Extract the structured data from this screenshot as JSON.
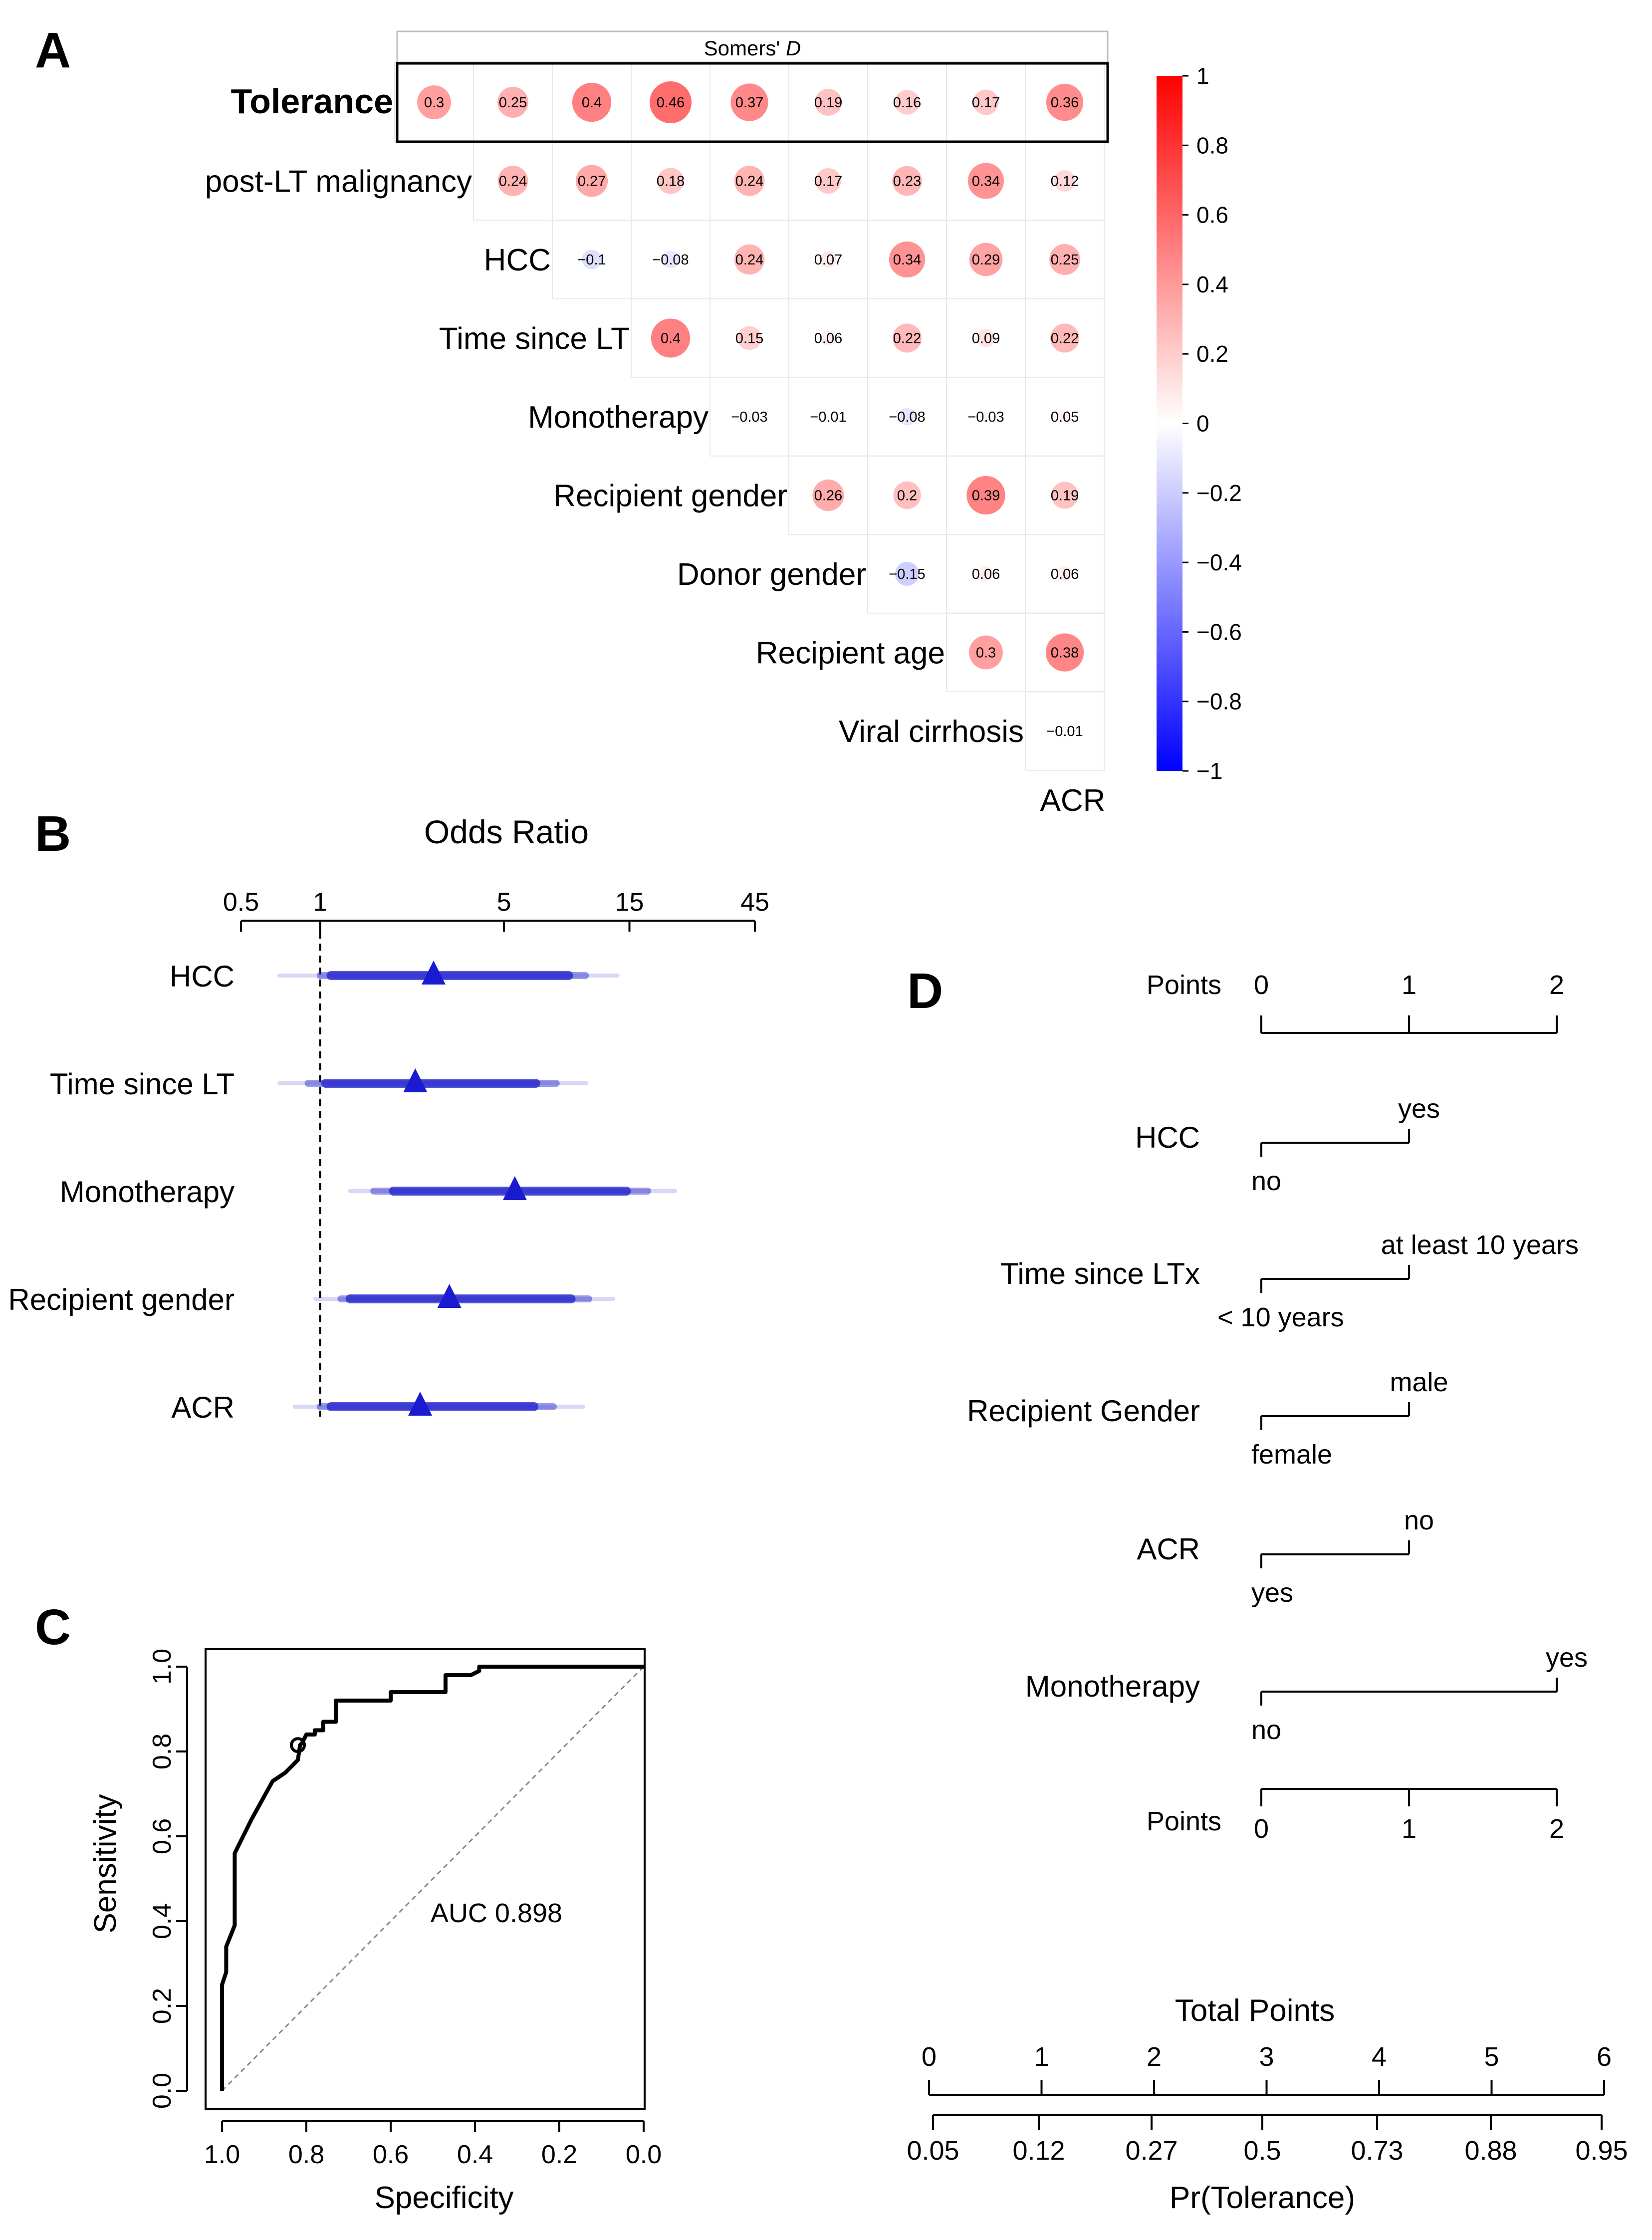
{
  "panels": {
    "a": "A",
    "b": "B",
    "c": "C",
    "d": "D"
  },
  "chart_data": [
    {
      "type": "heatmap",
      "panel": "A",
      "title": "Somers' D",
      "title_plain": "Somers' ",
      "title_italic": "D",
      "rows": [
        "Tolerance",
        "post-LT malignancy",
        "HCC",
        "Time since LT",
        "Monotherapy",
        "Recipient gender",
        "Donor gender",
        "Recipient age",
        "Viral cirrhosis"
      ],
      "bottom_label": "ACR",
      "values": [
        [
          0.3,
          0.25,
          0.4,
          0.46,
          0.37,
          0.19,
          0.16,
          0.17,
          0.36
        ],
        [
          0.24,
          0.27,
          0.18,
          0.24,
          0.17,
          0.23,
          0.34,
          0.12
        ],
        [
          -0.1,
          -0.08,
          0.24,
          0.07,
          0.34,
          0.29,
          0.25
        ],
        [
          0.4,
          0.15,
          0.06,
          0.22,
          0.09,
          0.22
        ],
        [
          -0.03,
          -0.01,
          -0.08,
          -0.03,
          0.05
        ],
        [
          0.26,
          0.2,
          0.39,
          0.19
        ],
        [
          -0.15,
          0.06,
          0.06
        ],
        [
          0.3,
          0.38
        ],
        [
          -0.01
        ]
      ],
      "colorbar": {
        "range": [
          -1,
          1
        ],
        "ticks": [
          "1",
          "0.8",
          "0.6",
          "0.4",
          "0.2",
          "0",
          "−0.2",
          "−0.4",
          "−0.6",
          "−0.8",
          "−1"
        ],
        "colors": {
          "low": "#0000ff",
          "mid": "#ffffff",
          "high": "#ff0000"
        }
      }
    },
    {
      "type": "scatter",
      "panel": "B",
      "subtype": "forest",
      "title": "Odds Ratio",
      "scale": "log",
      "xlim": [
        0.5,
        45
      ],
      "xticks": [
        "0.5",
        "1",
        "5",
        "15",
        "45"
      ],
      "xtick_values": [
        0.5,
        1,
        5,
        15,
        45
      ],
      "reference_line": 1,
      "color": "#2222cc",
      "rows": [
        {
          "label": "HCC",
          "or": 2.7,
          "ci_inner": [
            1.1,
            8.8
          ],
          "ci_mid": [
            1.0,
            10.2
          ],
          "ci_outer": [
            0.7,
            13.5
          ]
        },
        {
          "label": "Time since LT",
          "or": 2.3,
          "ci_inner": [
            1.05,
            6.6
          ],
          "ci_mid": [
            0.9,
            7.9
          ],
          "ci_outer": [
            0.7,
            10.3
          ]
        },
        {
          "label": "Monotherapy",
          "or": 5.5,
          "ci_inner": [
            1.9,
            14.6
          ],
          "ci_mid": [
            1.6,
            17.6
          ],
          "ci_outer": [
            1.3,
            22.4
          ]
        },
        {
          "label": "Recipient gender",
          "or": 3.1,
          "ci_inner": [
            1.3,
            9.0
          ],
          "ci_mid": [
            1.2,
            10.5
          ],
          "ci_outer": [
            0.96,
            13.0
          ]
        },
        {
          "label": "ACR",
          "or": 2.4,
          "ci_inner": [
            1.1,
            6.5
          ],
          "ci_mid": [
            1.0,
            7.7
          ],
          "ci_outer": [
            0.8,
            10.0
          ]
        }
      ]
    },
    {
      "type": "line",
      "panel": "C",
      "subtype": "roc",
      "xlabel": "Specificity",
      "ylabel": "Sensitivity",
      "xlim": [
        1.0,
        0.0
      ],
      "ylim": [
        0.0,
        1.0
      ],
      "xticks": [
        "1.0",
        "0.8",
        "0.6",
        "0.4",
        "0.2",
        "0.0"
      ],
      "yticks": [
        "0.0",
        "0.2",
        "0.4",
        "0.6",
        "0.8",
        "1.0"
      ],
      "annotation": "AUC 0.898",
      "threshold_point": {
        "specificity": 0.82,
        "sensitivity": 0.815
      },
      "x": [
        1.0,
        1.0,
        0.99,
        0.99,
        0.97,
        0.97,
        0.96,
        0.95,
        0.93,
        0.88,
        0.85,
        0.84,
        0.82,
        0.815,
        0.81,
        0.8,
        0.78,
        0.78,
        0.76,
        0.76,
        0.73,
        0.73,
        0.6,
        0.6,
        0.47,
        0.47,
        0.41,
        0.39,
        0.39,
        0.0
      ],
      "y": [
        0.0,
        0.25,
        0.28,
        0.34,
        0.39,
        0.56,
        0.58,
        0.6,
        0.64,
        0.73,
        0.75,
        0.76,
        0.78,
        0.815,
        0.82,
        0.84,
        0.84,
        0.85,
        0.85,
        0.87,
        0.87,
        0.92,
        0.92,
        0.94,
        0.94,
        0.98,
        0.98,
        0.99,
        1.0,
        1.0
      ]
    },
    {
      "type": "table",
      "panel": "D",
      "subtype": "nomogram",
      "points_label": "Points",
      "points_ticks": [
        "0",
        "1",
        "2"
      ],
      "variables": [
        {
          "name": "HCC",
          "low_label": "no",
          "high_label": "yes",
          "points": 1
        },
        {
          "name": "Time since LTx",
          "low_label": "< 10 years",
          "high_label": "at least 10 years",
          "points": 1
        },
        {
          "name": "Recipient Gender",
          "low_label": "female",
          "high_label": "male",
          "points": 1
        },
        {
          "name": "ACR",
          "low_label": "yes",
          "high_label": "no",
          "points": 1
        },
        {
          "name": "Monotherapy",
          "low_label": "no",
          "high_label": "yes",
          "points": 2
        }
      ],
      "total_points_label": "Total Points",
      "total_points_ticks": [
        "0",
        "1",
        "2",
        "3",
        "4",
        "5",
        "6"
      ],
      "probability_label": "Pr(Tolerance)",
      "probability_ticks": [
        "0.05",
        "0.12",
        "0.27",
        "0.5",
        "0.73",
        "0.88",
        "0.95"
      ]
    }
  ]
}
